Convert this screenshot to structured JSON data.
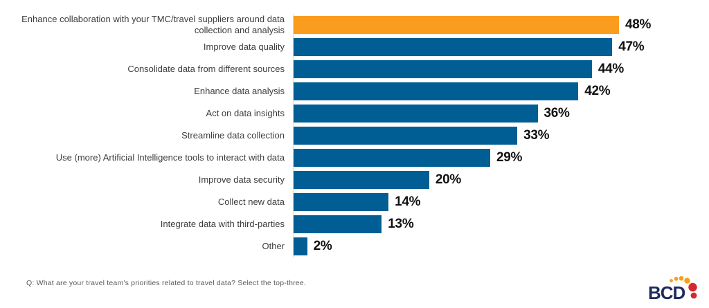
{
  "chart_data": {
    "type": "bar",
    "orientation": "horizontal",
    "categories": [
      "Enhance collaboration with your TMC/travel suppliers around data collection and analysis",
      "Improve data quality",
      "Consolidate data from different sources",
      "Enhance data analysis",
      "Act on data insights",
      "Streamline data collection",
      "Use (more) Artificial Intelligence tools to interact with data",
      "Improve data security",
      "Collect new data",
      "Integrate data with third-parties",
      "Other"
    ],
    "values": [
      48,
      47,
      44,
      42,
      36,
      33,
      29,
      20,
      14,
      13,
      2
    ],
    "value_labels": [
      "48%",
      "47%",
      "44%",
      "42%",
      "36%",
      "33%",
      "29%",
      "20%",
      "14%",
      "13%",
      "2%"
    ],
    "value_suffix": "%",
    "xlim": [
      0,
      48
    ],
    "grid": false,
    "legend": false,
    "highlight_index": 0,
    "colors": {
      "bar_default": "#005e94",
      "bar_highlight": "#fa9d1e",
      "value_text": "#111111",
      "label_text": "#3d3d3d",
      "axis_line": "#d6dce2"
    }
  },
  "footer": {
    "question": "Q: What are your travel team's priorities related to travel data? Select the top-three."
  },
  "logo": {
    "text": "BCD",
    "text_color": "#1f2a5c",
    "dot_orange": "#f6a01a",
    "dot_red": "#d7282f"
  }
}
